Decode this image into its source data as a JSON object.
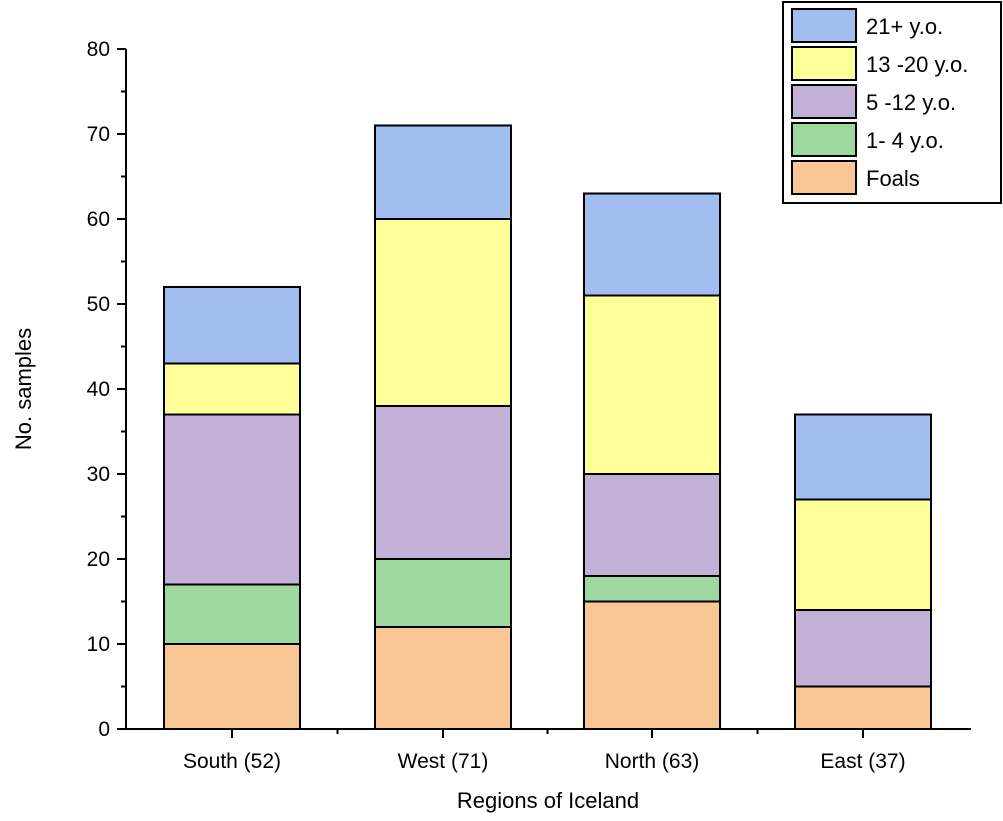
{
  "chart_data": {
    "type": "bar",
    "stacked": true,
    "title": "",
    "xlabel": "Regions of Iceland",
    "ylabel": "No. samples",
    "categories": [
      "South (52)",
      "West (71)",
      "North (63)",
      "East (37)"
    ],
    "ylim": [
      0,
      80
    ],
    "yticks": [
      0,
      10,
      20,
      30,
      40,
      50,
      60,
      70,
      80
    ],
    "grid": false,
    "legend_position": "top-right",
    "series": [
      {
        "name": "Foals",
        "color": "#f9c794",
        "values": [
          10,
          12,
          15,
          5
        ]
      },
      {
        "name": "1- 4 y.o.",
        "color": "#9fd89f",
        "values": [
          7,
          8,
          3,
          0
        ]
      },
      {
        "name": "5 -12 y.o.",
        "color": "#c2b0d6",
        "values": [
          20,
          18,
          12,
          9
        ]
      },
      {
        "name": "13 -20 y.o.",
        "color": "#ffff99",
        "values": [
          6,
          22,
          21,
          13
        ]
      },
      {
        "name": "21+ y.o.",
        "color": "#a2bdf0",
        "values": [
          9,
          11,
          12,
          10
        ]
      }
    ]
  }
}
